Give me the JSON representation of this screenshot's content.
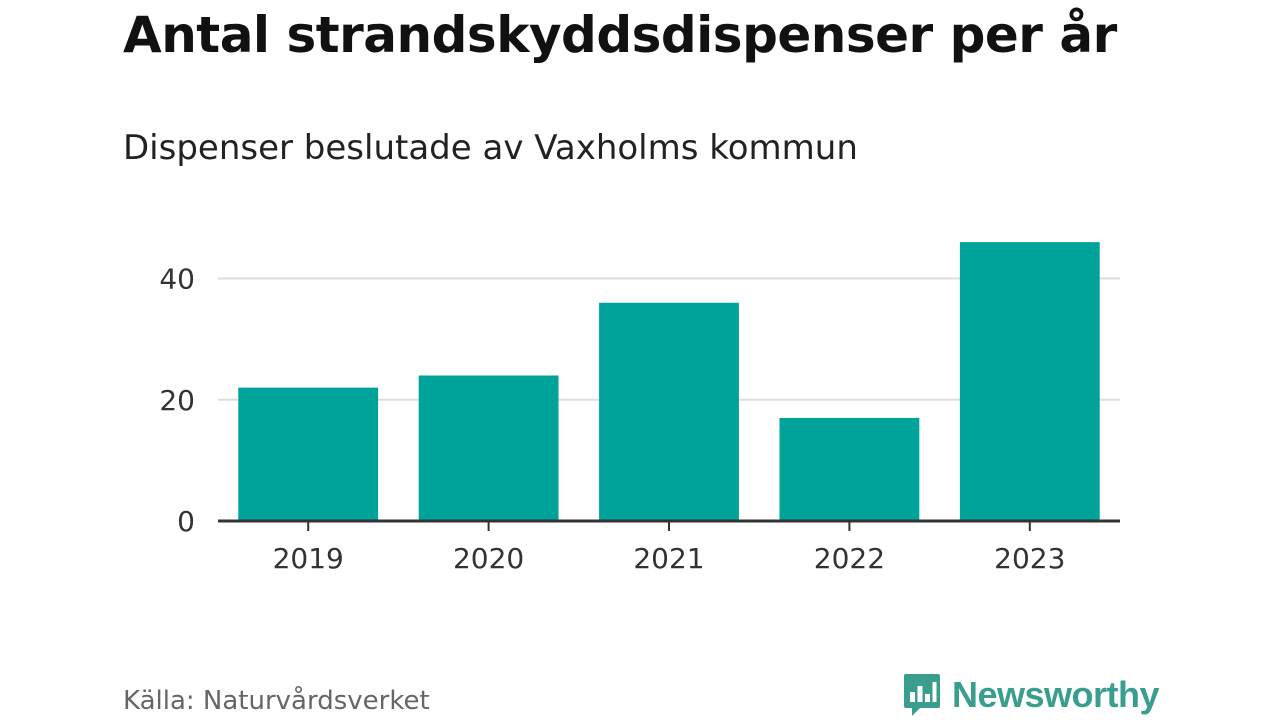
{
  "title": "Antal strandskyddsdispenser per år",
  "subtitle": "Dispenser beslutade av Vaxholms kommun",
  "source": "Källa: Naturvårdsverket",
  "brand": {
    "name": "Newsworthy",
    "icon": "newsworthy-logo-icon",
    "color": "#3a9e8e"
  },
  "colors": {
    "bar": "#00a39a",
    "grid": "#dddddd",
    "axis": "#333333"
  },
  "chart_data": {
    "type": "bar",
    "categories": [
      "2019",
      "2020",
      "2021",
      "2022",
      "2023"
    ],
    "values": [
      22,
      24,
      36,
      17,
      46
    ],
    "ylim": [
      0,
      48
    ],
    "yticks": [
      0,
      20,
      40
    ],
    "ytick_labels": [
      "0",
      "20",
      "40"
    ],
    "title": "Antal strandskyddsdispenser per år",
    "subtitle": "Dispenser beslutade av Vaxholms kommun",
    "xlabel": "",
    "ylabel": "",
    "grid": true
  }
}
